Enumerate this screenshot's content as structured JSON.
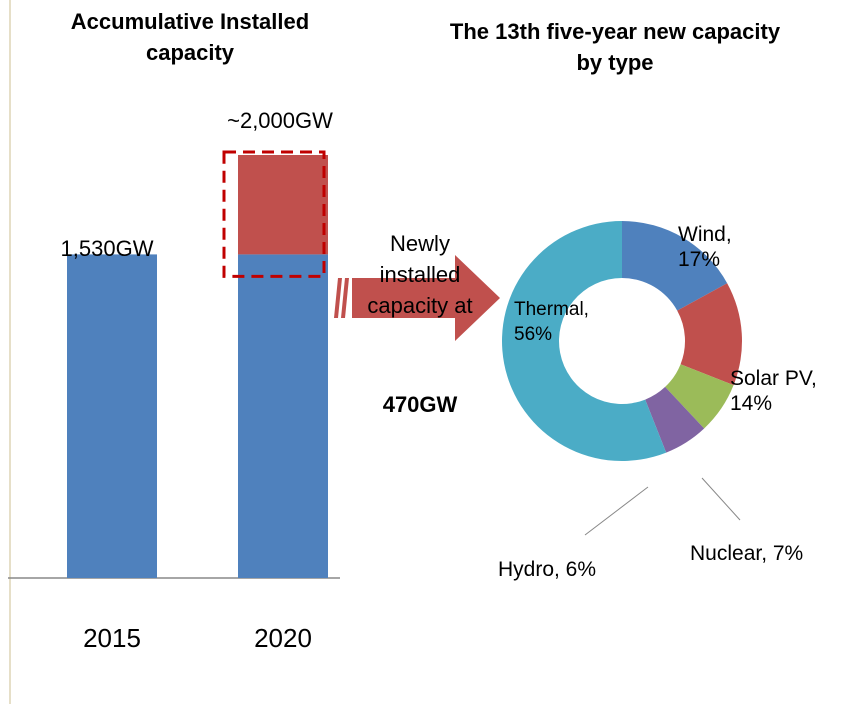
{
  "chart_data": [
    {
      "type": "bar",
      "title": "Accumulative Installed capacity",
      "categories": [
        "2015",
        "2020"
      ],
      "series": [
        {
          "color": "#4f81bd",
          "values": [
            1530,
            1530
          ],
          "value_labels": [
            "1,530GW",
            null
          ]
        },
        {
          "color": "#c0504d",
          "values": [
            null,
            470
          ],
          "value_labels": [
            null,
            "470GW"
          ]
        }
      ],
      "annotations": [
        "~2,000GW",
        "Newly installed capacity at"
      ]
    },
    {
      "type": "donut",
      "title": "The 13th five-year new capacity by type",
      "values": [
        17,
        14,
        7,
        6,
        56
      ],
      "value_labels": [
        "Wind, 17%",
        "Solar PV, 14%",
        "Nuclear, 7%",
        "Hydro, 6%",
        "Thermal, 56%"
      ],
      "colors": [
        "#4f81bd",
        "#c0504d",
        "#9bbb59",
        "#8064a2",
        "#4bacc6"
      ]
    }
  ]
}
